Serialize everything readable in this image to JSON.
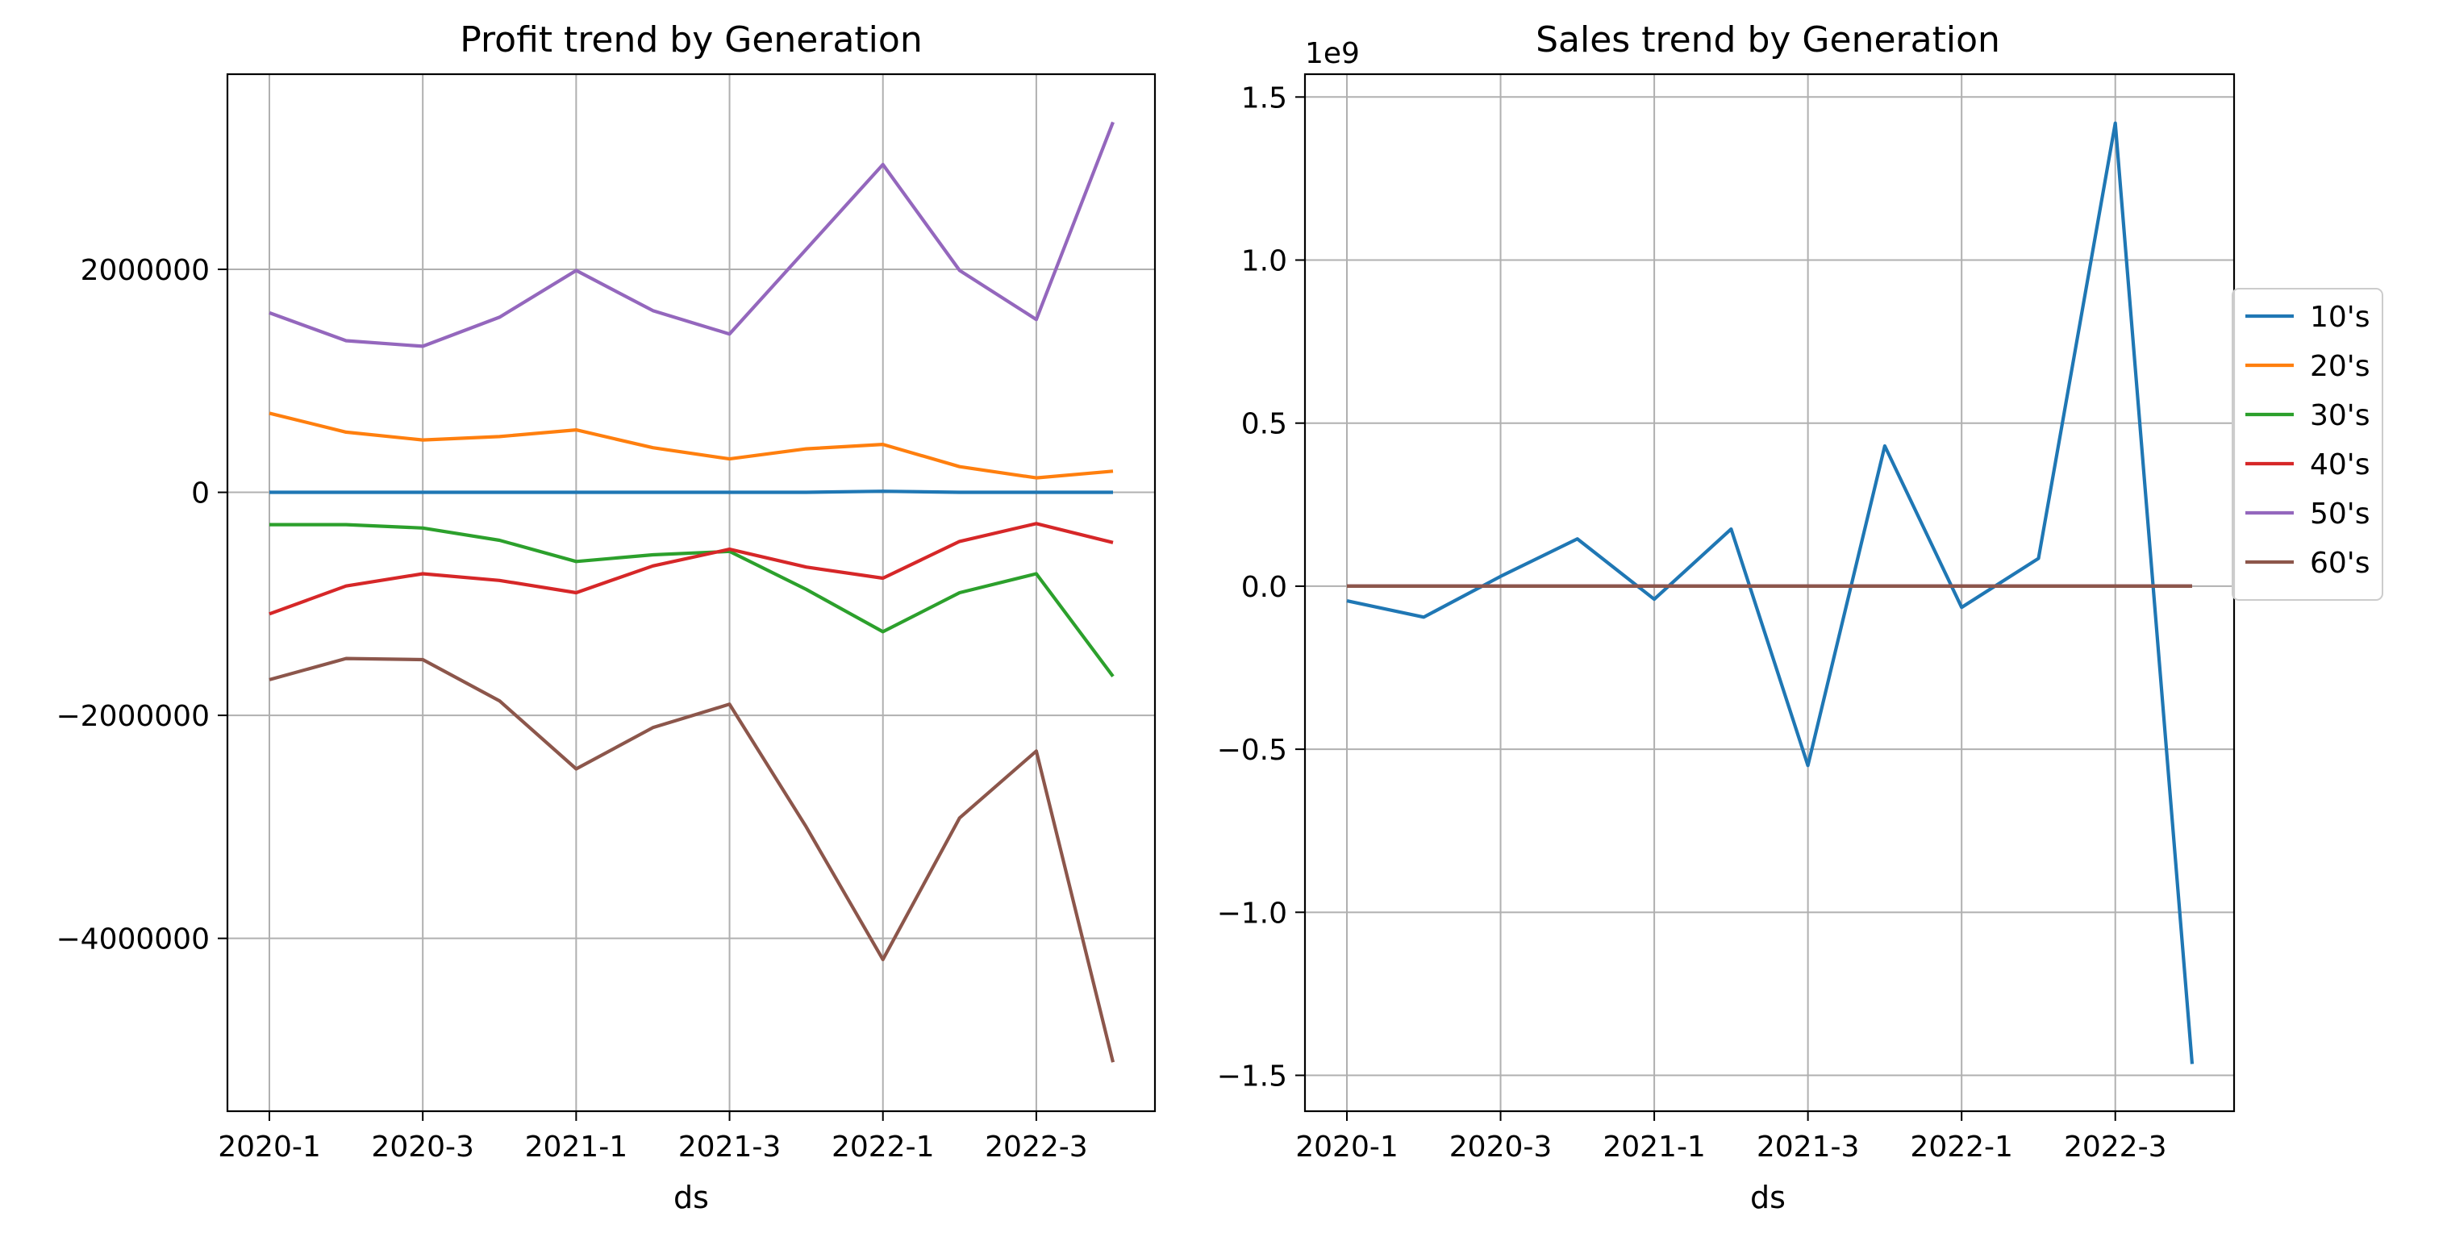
{
  "colors": {
    "10's": "#1f77b4",
    "20's": "#ff7f0e",
    "30's": "#2ca02c",
    "40's": "#d62728",
    "50's": "#9467bd",
    "60's": "#8c564b"
  },
  "legend": {
    "placement": "right-center (outside right chart)",
    "entries": [
      "10's",
      "20's",
      "30's",
      "40's",
      "50's",
      "60's"
    ]
  },
  "chart_data": [
    {
      "type": "line",
      "title": "Profit trend by Generation",
      "xlabel": "ds",
      "ylabel": "",
      "x": [
        "2020-1",
        "2020-2",
        "2020-3",
        "2020-4",
        "2021-1",
        "2021-2",
        "2021-3",
        "2021-4",
        "2022-1",
        "2022-2",
        "2022-3",
        "2022-4"
      ],
      "xtick_labels": [
        "2020-1",
        "2020-3",
        "2021-1",
        "2021-3",
        "2022-1",
        "2022-3"
      ],
      "ylim": [
        -5550000,
        3750000
      ],
      "yticks": [
        -4000000,
        -2000000,
        0,
        2000000
      ],
      "ytick_labels": [
        "−4000000",
        "−2000000",
        "0",
        "2000000"
      ],
      "grid": true,
      "series": [
        {
          "name": "10's",
          "values": [
            0,
            0,
            0,
            0,
            0,
            0,
            0,
            0,
            10000,
            0,
            0,
            0
          ]
        },
        {
          "name": "20's",
          "values": [
            710000,
            540000,
            470000,
            500000,
            560000,
            400000,
            300000,
            390000,
            430000,
            230000,
            130000,
            190000
          ]
        },
        {
          "name": "30's",
          "values": [
            -290000,
            -290000,
            -320000,
            -430000,
            -620000,
            -560000,
            -530000,
            -870000,
            -1250000,
            -900000,
            -730000,
            -1650000
          ]
        },
        {
          "name": "40's",
          "values": [
            -1090000,
            -840000,
            -730000,
            -790000,
            -900000,
            -660000,
            -510000,
            -670000,
            -770000,
            -440000,
            -280000,
            -450000
          ]
        },
        {
          "name": "50's",
          "values": [
            1610000,
            1360000,
            1310000,
            1570000,
            1990000,
            1630000,
            1420000,
            2180000,
            2940000,
            1990000,
            1550000,
            3320000
          ]
        },
        {
          "name": "60's",
          "values": [
            -1680000,
            -1490000,
            -1500000,
            -1870000,
            -2480000,
            -2110000,
            -1900000,
            -3000000,
            -4190000,
            -2920000,
            -2320000,
            -5110000
          ]
        }
      ]
    },
    {
      "type": "line",
      "title": "Sales trend by Generation",
      "xlabel": "ds",
      "ylabel": "",
      "offset_text": "1e9",
      "x": [
        "2020-1",
        "2020-2",
        "2020-3",
        "2020-4",
        "2021-1",
        "2021-2",
        "2021-3",
        "2021-4",
        "2022-1",
        "2022-2",
        "2022-3",
        "2022-4"
      ],
      "xtick_labels": [
        "2020-1",
        "2020-3",
        "2021-1",
        "2021-3",
        "2022-1",
        "2022-3"
      ],
      "ylim": [
        -1.61,
        1.57
      ],
      "yticks": [
        -1.5,
        -1.0,
        -0.5,
        0.0,
        0.5,
        1.0,
        1.5
      ],
      "ytick_labels": [
        "−1.5",
        "−1.0",
        "−0.5",
        "0.0",
        "0.5",
        "1.0",
        "1.5"
      ],
      "grid": true,
      "series": [
        {
          "name": "10's",
          "values": [
            -0.045,
            -0.095,
            0.03,
            0.145,
            -0.04,
            0.175,
            -0.55,
            0.43,
            -0.065,
            0.085,
            1.42,
            -1.465
          ]
        },
        {
          "name": "20's",
          "values": [
            0,
            0,
            0,
            0,
            0,
            0,
            0,
            0,
            0,
            0,
            0,
            0
          ]
        },
        {
          "name": "30's",
          "values": [
            0,
            0,
            0,
            0,
            0,
            0,
            0,
            0,
            0,
            0,
            0,
            0
          ]
        },
        {
          "name": "40's",
          "values": [
            0,
            0,
            0,
            0,
            0,
            0,
            0,
            0,
            0,
            0,
            0,
            0
          ]
        },
        {
          "name": "50's",
          "values": [
            0,
            0,
            0,
            0,
            0,
            0,
            0,
            0,
            0,
            0,
            0,
            0
          ]
        },
        {
          "name": "60's",
          "values": [
            0,
            0,
            0,
            0,
            0,
            0,
            0,
            0,
            0,
            0,
            0,
            0
          ]
        }
      ]
    }
  ]
}
